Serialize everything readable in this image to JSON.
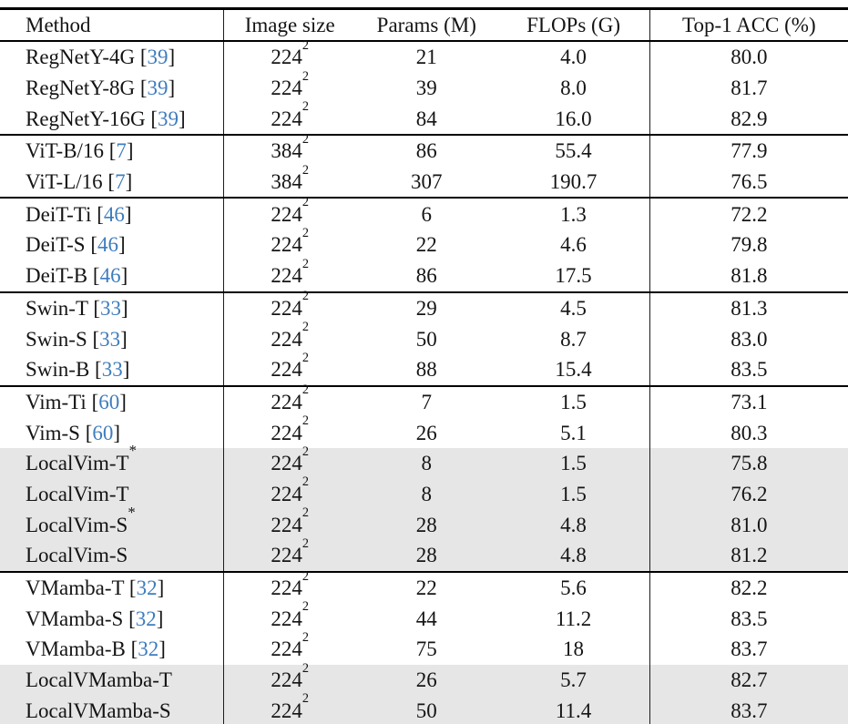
{
  "table": {
    "columns": [
      "Method",
      "Image size",
      "Params (M)",
      "FLOPs (G)",
      "Top-1 ACC (%)"
    ],
    "format": {
      "cite_open": "[",
      "cite_close": "]",
      "star": "*",
      "size_exponent": "2"
    },
    "colors": {
      "citation": "#3e7dbe",
      "shaded_row": "#e6e6e6",
      "rule": "#000000"
    },
    "rows": [
      {
        "method": "RegNetY-4G",
        "cite": "39",
        "star": false,
        "image_size": "224",
        "params": "21",
        "flops": "4.0",
        "acc": "80.0",
        "shaded": false,
        "rule_above": false
      },
      {
        "method": "RegNetY-8G",
        "cite": "39",
        "star": false,
        "image_size": "224",
        "params": "39",
        "flops": "8.0",
        "acc": "81.7",
        "shaded": false,
        "rule_above": false
      },
      {
        "method": "RegNetY-16G",
        "cite": "39",
        "star": false,
        "image_size": "224",
        "params": "84",
        "flops": "16.0",
        "acc": "82.9",
        "shaded": false,
        "rule_above": false
      },
      {
        "method": "ViT-B/16",
        "cite": "7",
        "star": false,
        "image_size": "384",
        "params": "86",
        "flops": "55.4",
        "acc": "77.9",
        "shaded": false,
        "rule_above": true
      },
      {
        "method": "ViT-L/16",
        "cite": "7",
        "star": false,
        "image_size": "384",
        "params": "307",
        "flops": "190.7",
        "acc": "76.5",
        "shaded": false,
        "rule_above": false
      },
      {
        "method": "DeiT-Ti",
        "cite": "46",
        "star": false,
        "image_size": "224",
        "params": "6",
        "flops": "1.3",
        "acc": "72.2",
        "shaded": false,
        "rule_above": true
      },
      {
        "method": "DeiT-S",
        "cite": "46",
        "star": false,
        "image_size": "224",
        "params": "22",
        "flops": "4.6",
        "acc": "79.8",
        "shaded": false,
        "rule_above": false
      },
      {
        "method": "DeiT-B",
        "cite": "46",
        "star": false,
        "image_size": "224",
        "params": "86",
        "flops": "17.5",
        "acc": "81.8",
        "shaded": false,
        "rule_above": false
      },
      {
        "method": "Swin-T",
        "cite": "33",
        "star": false,
        "image_size": "224",
        "params": "29",
        "flops": "4.5",
        "acc": "81.3",
        "shaded": false,
        "rule_above": true
      },
      {
        "method": "Swin-S",
        "cite": "33",
        "star": false,
        "image_size": "224",
        "params": "50",
        "flops": "8.7",
        "acc": "83.0",
        "shaded": false,
        "rule_above": false
      },
      {
        "method": "Swin-B",
        "cite": "33",
        "star": false,
        "image_size": "224",
        "params": "88",
        "flops": "15.4",
        "acc": "83.5",
        "shaded": false,
        "rule_above": false
      },
      {
        "method": "Vim-Ti",
        "cite": "60",
        "star": false,
        "image_size": "224",
        "params": "7",
        "flops": "1.5",
        "acc": "73.1",
        "shaded": false,
        "rule_above": true
      },
      {
        "method": "Vim-S",
        "cite": "60",
        "star": false,
        "image_size": "224",
        "params": "26",
        "flops": "5.1",
        "acc": "80.3",
        "shaded": false,
        "rule_above": false
      },
      {
        "method": "LocalVim-T",
        "cite": null,
        "star": true,
        "image_size": "224",
        "params": "8",
        "flops": "1.5",
        "acc": "75.8",
        "shaded": true,
        "rule_above": false
      },
      {
        "method": "LocalVim-T",
        "cite": null,
        "star": false,
        "image_size": "224",
        "params": "8",
        "flops": "1.5",
        "acc": "76.2",
        "shaded": true,
        "rule_above": false
      },
      {
        "method": "LocalVim-S",
        "cite": null,
        "star": true,
        "image_size": "224",
        "params": "28",
        "flops": "4.8",
        "acc": "81.0",
        "shaded": true,
        "rule_above": false
      },
      {
        "method": "LocalVim-S",
        "cite": null,
        "star": false,
        "image_size": "224",
        "params": "28",
        "flops": "4.8",
        "acc": "81.2",
        "shaded": true,
        "rule_above": false
      },
      {
        "method": "VMamba-T",
        "cite": "32",
        "star": false,
        "image_size": "224",
        "params": "22",
        "flops": "5.6",
        "acc": "82.2",
        "shaded": false,
        "rule_above": true
      },
      {
        "method": "VMamba-S",
        "cite": "32",
        "star": false,
        "image_size": "224",
        "params": "44",
        "flops": "11.2",
        "acc": "83.5",
        "shaded": false,
        "rule_above": false
      },
      {
        "method": "VMamba-B",
        "cite": "32",
        "star": false,
        "image_size": "224",
        "params": "75",
        "flops": "18",
        "acc": "83.7",
        "shaded": false,
        "rule_above": false
      },
      {
        "method": "LocalVMamba-T",
        "cite": null,
        "star": false,
        "image_size": "224",
        "params": "26",
        "flops": "5.7",
        "acc": "82.7",
        "shaded": true,
        "rule_above": false
      },
      {
        "method": "LocalVMamba-S",
        "cite": null,
        "star": false,
        "image_size": "224",
        "params": "50",
        "flops": "11.4",
        "acc": "83.7",
        "shaded": true,
        "rule_above": false
      }
    ]
  }
}
